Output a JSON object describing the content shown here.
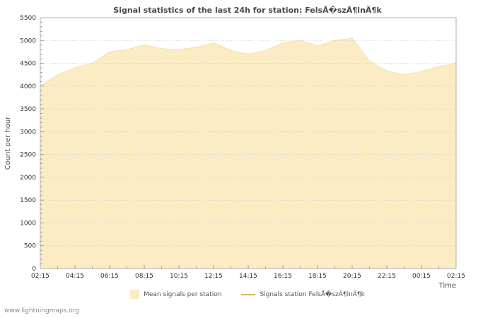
{
  "page": {
    "footer_link": "www.lightningmaps.org"
  },
  "chart_data": {
    "type": "area",
    "title": "Signal statistics of the last 24h for station: FelsÅ�szÃ¶lnÃ¶k",
    "xlabel": "Time",
    "ylabel": "Count per hour",
    "ylim": [
      0,
      5500
    ],
    "y_tick_step": 500,
    "y_minor_step": 100,
    "grid": "horizontal-dotted",
    "legend_position": "bottom",
    "x": [
      "02:15",
      "03:15",
      "04:15",
      "05:15",
      "06:15",
      "07:15",
      "08:15",
      "09:15",
      "10:15",
      "11:15",
      "12:15",
      "13:15",
      "14:15",
      "15:15",
      "16:15",
      "17:15",
      "18:15",
      "19:15",
      "20:15",
      "21:15",
      "22:15",
      "23:15",
      "00:15",
      "01:15",
      "02:15"
    ],
    "x_tick_labels": [
      "02:15",
      "04:15",
      "06:15",
      "08:15",
      "10:15",
      "12:15",
      "14:15",
      "16:15",
      "18:15",
      "20:15",
      "22:15",
      "00:15",
      "02:15"
    ],
    "series": [
      {
        "name": "Mean signals per station",
        "type": "area",
        "color": "#fcecc4",
        "edge": "#f6dfa9",
        "values": [
          4000,
          4250,
          4400,
          4500,
          4750,
          4800,
          4900,
          4820,
          4800,
          4850,
          4950,
          4780,
          4700,
          4780,
          4950,
          5000,
          4880,
          5000,
          5050,
          4550,
          4330,
          4250,
          4320,
          4430,
          4500
        ]
      },
      {
        "name": "Signals station FelsÅ�szÃ¶lnÃ¶k",
        "type": "line",
        "color": "#ddb960",
        "values": []
      }
    ]
  }
}
